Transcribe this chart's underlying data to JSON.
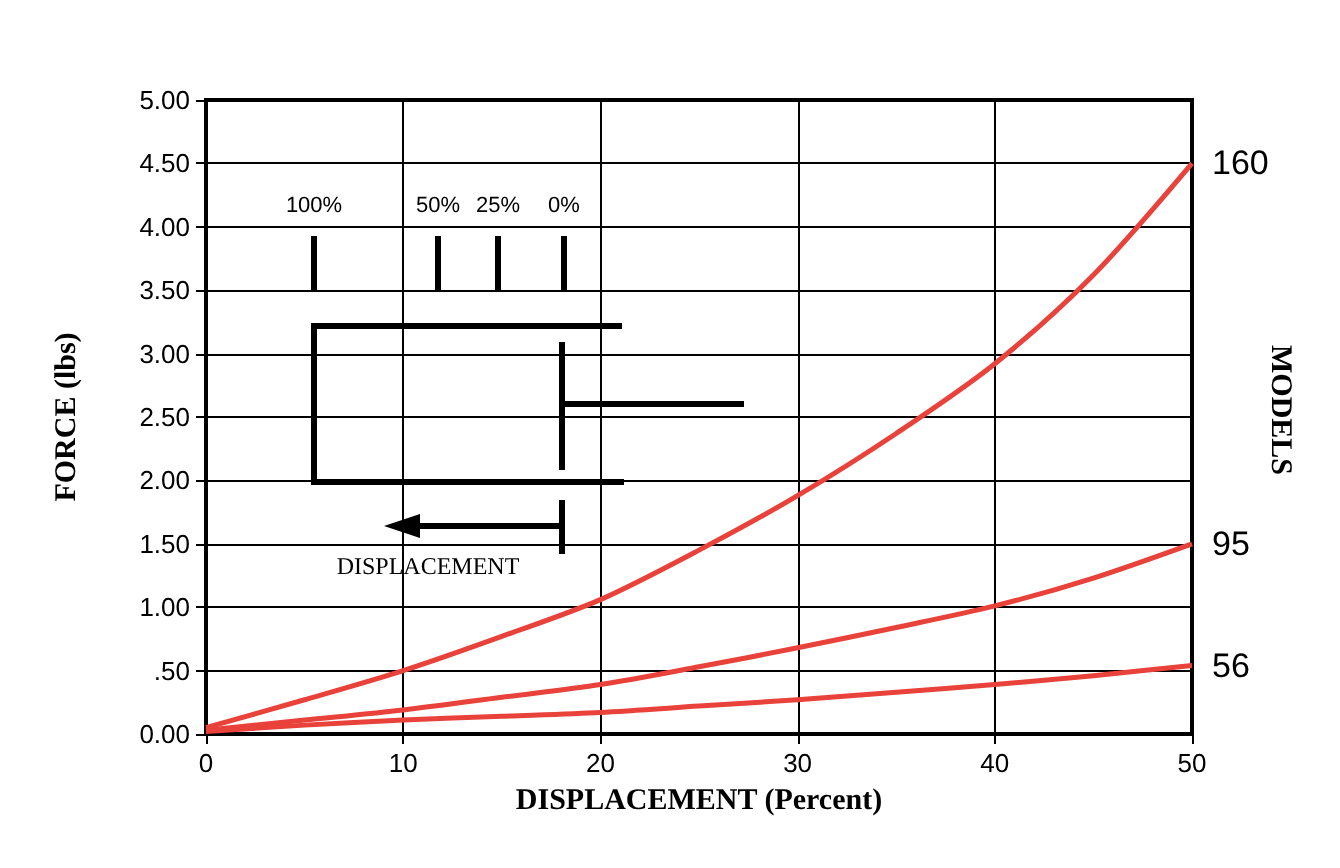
{
  "chart_data": {
    "type": "line",
    "xlabel": "DISPLACEMENT (Percent)",
    "ylabel": "FORCE (lbs)",
    "x": [
      0,
      5,
      10,
      15,
      20,
      25,
      30,
      35,
      40,
      45,
      50
    ],
    "series": [
      {
        "name": "160",
        "color": "#e8423a",
        "values": [
          0.05,
          0.27,
          0.5,
          0.77,
          1.06,
          1.45,
          1.88,
          2.37,
          2.92,
          3.62,
          4.5
        ]
      },
      {
        "name": "95",
        "color": "#e8423a",
        "values": [
          0.03,
          0.11,
          0.19,
          0.29,
          0.39,
          0.53,
          0.68,
          0.84,
          1.01,
          1.23,
          1.5
        ]
      },
      {
        "name": "56",
        "color": "#e8423a",
        "values": [
          0.02,
          0.07,
          0.11,
          0.14,
          0.17,
          0.22,
          0.27,
          0.33,
          0.39,
          0.46,
          0.54
        ]
      }
    ],
    "xlim": [
      0,
      50
    ],
    "xticks": [
      0,
      10,
      20,
      30,
      40,
      50
    ],
    "ylim": [
      0,
      5
    ],
    "yticks": [
      {
        "value": 0,
        "label": "0.00"
      },
      {
        "value": 0.5,
        "label": ".50"
      },
      {
        "value": 1,
        "label": "1.00"
      },
      {
        "value": 1.5,
        "label": "1.50"
      },
      {
        "value": 2,
        "label": "2.00"
      },
      {
        "value": 2.5,
        "label": "2.50"
      },
      {
        "value": 3,
        "label": "3.00"
      },
      {
        "value": 3.5,
        "label": "3.50"
      },
      {
        "value": 4,
        "label": "4.00"
      },
      {
        "value": 4.5,
        "label": "4.50"
      },
      {
        "value": 5,
        "label": "5.00"
      }
    ],
    "grid": true,
    "legend": false,
    "marker": "none",
    "line_style": "solid",
    "annotations": [
      "100%",
      "50%",
      "25%",
      "0%",
      "DISPLACEMENT",
      "MODELS"
    ]
  }
}
